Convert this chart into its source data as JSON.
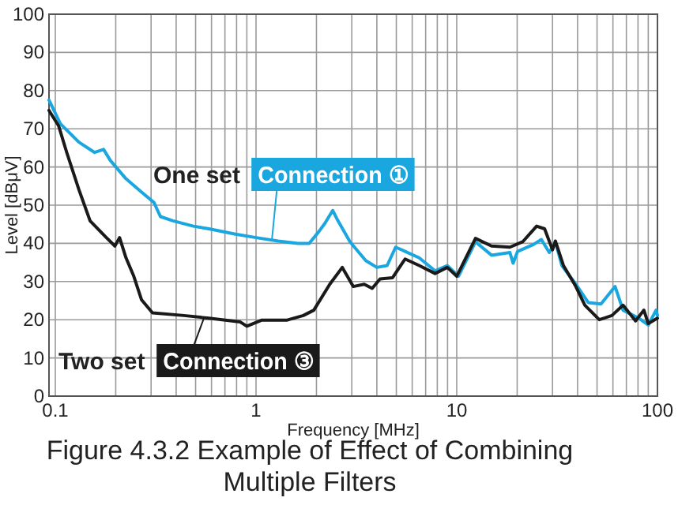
{
  "chart_data": {
    "type": "line",
    "title": "Figure 4.3.2 Example of Effect of Combining Multiple Filters",
    "xlabel": "Frequency [MHz]",
    "ylabel": "Level [dBμV]",
    "log": "x",
    "grid": true,
    "line_style": "solid",
    "marker": "none",
    "xlim": [
      0.093,
      100
    ],
    "ylim": [
      0,
      100
    ],
    "xticks": [
      0.1,
      {
        "value": 0.2,
        "label": null
      },
      {
        "value": 0.3,
        "label": null
      },
      {
        "value": 0.4,
        "label": null
      },
      {
        "value": 0.5,
        "label": null
      },
      {
        "value": 0.6,
        "label": null
      },
      {
        "value": 0.7,
        "label": null
      },
      {
        "value": 0.8,
        "label": null
      },
      {
        "value": 0.9,
        "label": null
      },
      1,
      {
        "value": 2,
        "label": null
      },
      {
        "value": 3,
        "label": null
      },
      {
        "value": 4,
        "label": null
      },
      {
        "value": 5,
        "label": null
      },
      {
        "value": 6,
        "label": null
      },
      {
        "value": 7,
        "label": null
      },
      {
        "value": 8,
        "label": null
      },
      {
        "value": 9,
        "label": null
      },
      10,
      {
        "value": 20,
        "label": null
      },
      {
        "value": 30,
        "label": null
      },
      {
        "value": 40,
        "label": null
      },
      {
        "value": 50,
        "label": null
      },
      {
        "value": 60,
        "label": null
      },
      {
        "value": 70,
        "label": null
      },
      {
        "value": 80,
        "label": null
      },
      {
        "value": 90,
        "label": null
      },
      100
    ],
    "yticks": [
      0,
      10,
      20,
      30,
      40,
      50,
      60,
      70,
      80,
      90,
      100
    ],
    "series": [
      {
        "color": "#1aa7e0",
        "x": [
          0.093,
          0.106,
          0.131,
          0.157,
          0.174,
          0.188,
          0.225,
          0.269,
          0.31,
          0.334,
          0.386,
          0.487,
          0.583,
          0.79,
          1,
          1.29,
          1.62,
          1.84,
          2.05,
          2.2,
          2.41,
          2.56,
          2.94,
          3.52,
          4.0,
          4.5,
          4.96,
          5.53,
          6.5,
          7.8,
          8.97,
          10.2,
          12.4,
          14.9,
          18.4,
          19.1,
          20.1,
          24.1,
          26.4,
          28.9,
          31,
          33.4,
          39.2,
          45.2,
          52.3,
          61.5,
          67.4,
          80.8,
          90,
          98.4,
          100
        ],
        "values": [
          77.5,
          71.3,
          66.5,
          63.8,
          64.6,
          61.7,
          56.9,
          53.4,
          50.7,
          47,
          45.9,
          44.5,
          43.8,
          42.4,
          41.5,
          40.6,
          40,
          40,
          43,
          45.2,
          48.6,
          45.9,
          40.4,
          35.5,
          33.7,
          34.2,
          39,
          37.9,
          36.2,
          32.8,
          34.2,
          31.4,
          40.4,
          36.9,
          37.6,
          34.8,
          37.9,
          39.7,
          41,
          37.6,
          40.4,
          34.2,
          29.3,
          24.5,
          24.1,
          28.7,
          22.5,
          20.4,
          18.6,
          22.5,
          21.1
        ]
      },
      {
        "color": "#1a1a1a",
        "x": [
          0.093,
          0.104,
          0.114,
          0.131,
          0.149,
          0.178,
          0.198,
          0.209,
          0.225,
          0.246,
          0.269,
          0.305,
          0.437,
          0.583,
          0.835,
          0.9,
          1.07,
          1.43,
          1.72,
          1.94,
          2.33,
          2.69,
          3.05,
          3.46,
          3.79,
          4.15,
          4.79,
          5.53,
          6.5,
          7.8,
          8.97,
          10,
          12.4,
          14.9,
          18.4,
          21.3,
          25,
          27.4,
          30,
          31,
          34,
          39.2,
          43.5,
          51.3,
          59.3,
          67.4,
          77.8,
          85.6,
          90,
          100
        ],
        "values": [
          74.8,
          70.7,
          63.8,
          54.1,
          45.9,
          41.7,
          39.3,
          41.5,
          36.2,
          31.4,
          25.2,
          21.8,
          21.1,
          20.4,
          19.4,
          18.3,
          19.9,
          19.9,
          21.1,
          22.5,
          29.3,
          33.7,
          28.7,
          29.3,
          28.2,
          30.7,
          31,
          35.9,
          34.2,
          32.1,
          33.7,
          31.4,
          41.3,
          39.3,
          39,
          40.4,
          44.5,
          43.8,
          38.3,
          40.6,
          34.2,
          28.7,
          23.8,
          20,
          21.1,
          23.8,
          19.7,
          22.5,
          19,
          20.4
        ]
      }
    ],
    "annotations": [
      {
        "text": "One set Connection ①",
        "x": 1.2,
        "y": 41
      },
      {
        "text": "Two set Connection ③",
        "x": 0.55,
        "y": 20.4
      }
    ]
  }
}
